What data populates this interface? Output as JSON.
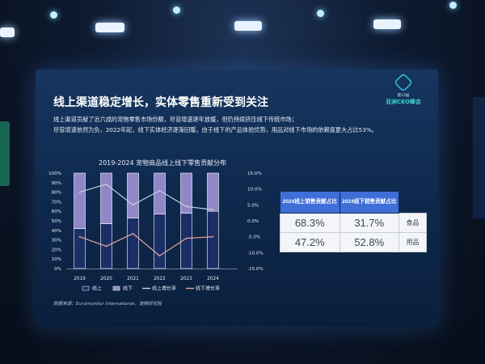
{
  "slide": {
    "title": "线上渠道稳定增长，实体零售重新受到关注",
    "subtitle_line1": "线上渠道贡献了近六成的宠物零售市场份额，尽管增速逐年放缓，但仍持续挤压线下传统市场；",
    "subtitle_line2": "尽管增速依然为负，2022年起，线下实体经济逐渐回暖，由于线下的产品体验优势，用品对线下市场的依赖度更大占比53%。",
    "logo_line1": "第13届",
    "logo_line2": "亚洲CEO峰会",
    "source": "数据来源：Euromonitor International，宠物研究院"
  },
  "table": {
    "header_online": "2024线上销售贡献占比",
    "header_offline": "2024线下销售贡献占比",
    "rows": [
      {
        "online": "68.3%",
        "offline": "31.7%",
        "label": "食品"
      },
      {
        "online": "47.2%",
        "offline": "52.8%",
        "label": "用品"
      }
    ]
  },
  "chart_data": {
    "type": "bar",
    "title": "2019-2024 宠物商品线上线下零售贡献分布",
    "categories": [
      "2019",
      "2020",
      "2021",
      "2022",
      "2023",
      "2024"
    ],
    "series": [
      {
        "name": "线上",
        "kind": "stacked-bar",
        "axis": "left",
        "values": [
          42,
          47,
          53,
          57,
          58,
          60
        ]
      },
      {
        "name": "线下",
        "kind": "stacked-bar",
        "axis": "left",
        "values": [
          58,
          53,
          47,
          43,
          42,
          40
        ]
      },
      {
        "name": "线上增长率",
        "kind": "line",
        "axis": "right",
        "values": [
          9,
          11.5,
          5,
          9.5,
          4.5,
          3.5
        ]
      },
      {
        "name": "线下增长率",
        "kind": "line",
        "axis": "right",
        "values": [
          -5,
          -8,
          -4,
          -11,
          -5.5,
          -5
        ]
      }
    ],
    "y_left": {
      "ticks": [
        "0%",
        "10%",
        "20%",
        "30%",
        "40%",
        "50%",
        "60%",
        "70%",
        "80%",
        "90%",
        "100%"
      ],
      "ylim": [
        0,
        100
      ]
    },
    "y_right": {
      "ticks": [
        "-15.0%",
        "-10.0%",
        "-5.0%",
        "0.0%",
        "5.0%",
        "10.0%",
        "15.0%"
      ],
      "ylim": [
        -15,
        15
      ]
    },
    "legend": [
      "线上",
      "线下",
      "线上增长率",
      "线下增长率"
    ],
    "legend_position": "bottom",
    "colors": {
      "online": "#1b2f66",
      "offline": "#8f88c8",
      "online_growth": "#c9cfe0",
      "offline_growth": "#e7a5a1",
      "axis_text": "#e6edf8"
    }
  }
}
